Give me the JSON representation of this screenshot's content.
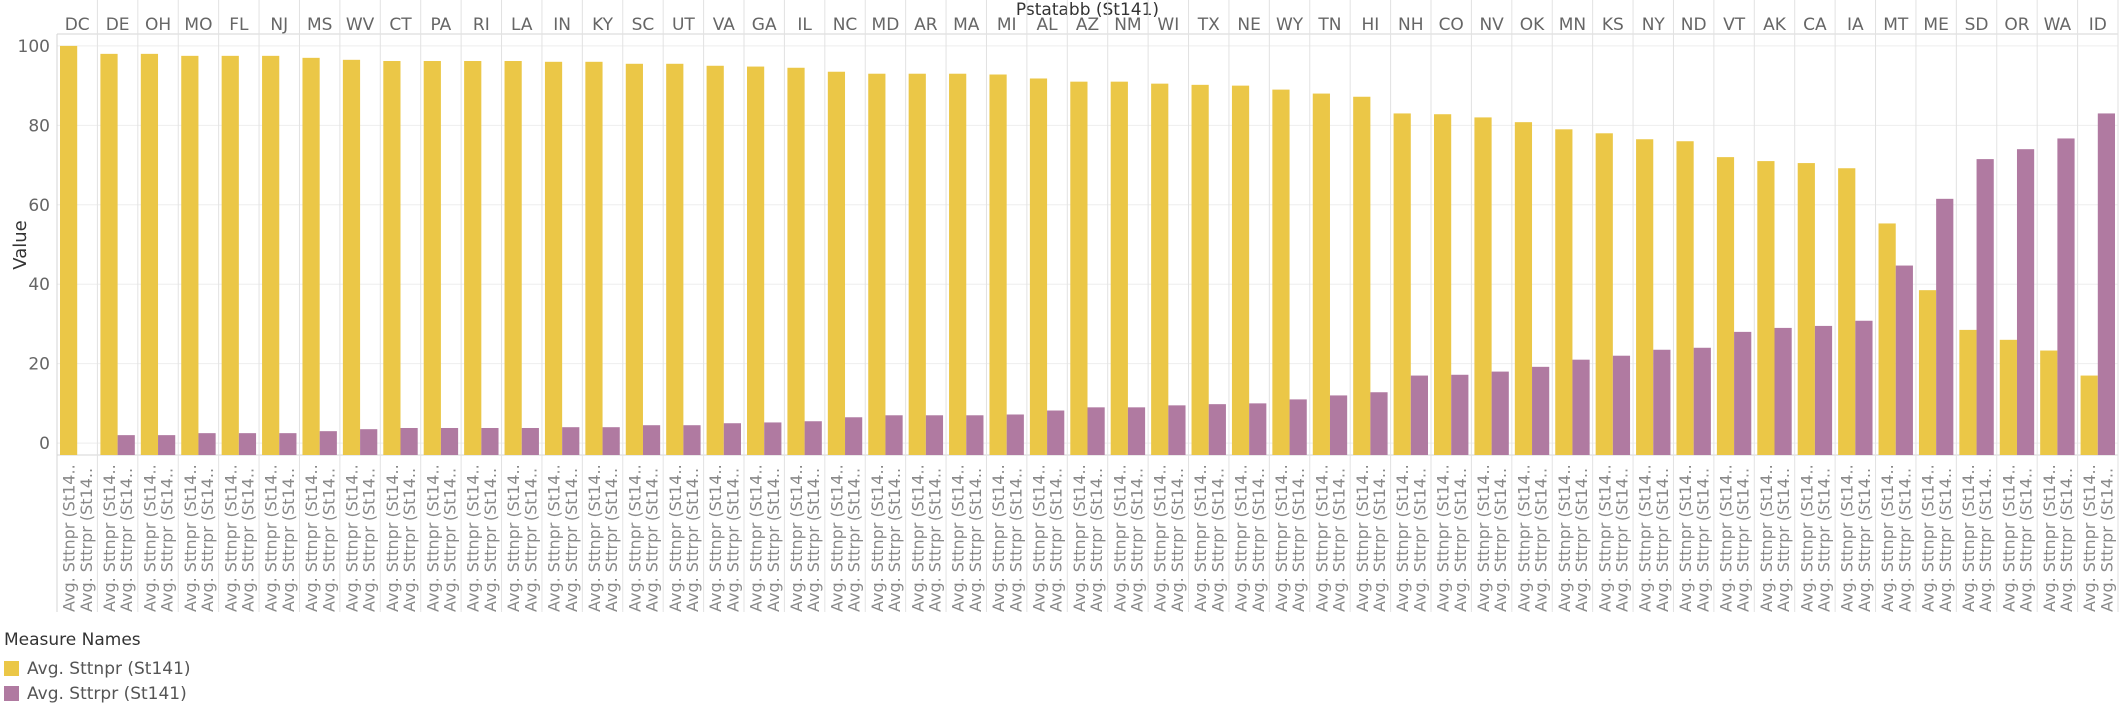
{
  "chart_data": {
    "type": "bar",
    "title": "Pstatabb (St141)",
    "ylabel": "Value",
    "ylim": [
      -3,
      103
    ],
    "yticks": [
      0,
      20,
      40,
      60,
      80,
      100
    ],
    "grid": true,
    "categories": [
      "DC",
      "DE",
      "OH",
      "MO",
      "FL",
      "NJ",
      "MS",
      "WV",
      "CT",
      "PA",
      "RI",
      "LA",
      "IN",
      "KY",
      "SC",
      "UT",
      "VA",
      "GA",
      "IL",
      "NC",
      "MD",
      "AR",
      "MA",
      "MI",
      "AL",
      "AZ",
      "NM",
      "WI",
      "TX",
      "NE",
      "WY",
      "TN",
      "HI",
      "NH",
      "CO",
      "NV",
      "OK",
      "MN",
      "KS",
      "NY",
      "ND",
      "VT",
      "AK",
      "CA",
      "IA",
      "MT",
      "ME",
      "SD",
      "OR",
      "WA",
      "ID"
    ],
    "series": [
      {
        "name": "Avg. Sttnpr (St141)",
        "color": "#EBC747",
        "values": [
          100,
          98,
          98,
          97.5,
          97.5,
          97.5,
          97,
          96.5,
          96.2,
          96.2,
          96.2,
          96.2,
          96,
          96,
          95.5,
          95.5,
          95,
          94.8,
          94.5,
          93.5,
          93,
          93,
          93,
          92.8,
          91.8,
          91,
          91,
          90.5,
          90.2,
          90,
          89,
          88,
          87.2,
          83,
          82.8,
          82,
          80.8,
          79,
          78,
          76.5,
          76,
          72,
          71,
          70.5,
          69.2,
          55.3,
          38.5,
          28.5,
          26,
          23.3,
          17
        ]
      },
      {
        "name": "Avg. Sttrpr (St141)",
        "color": "#B07AA1",
        "values": [
          0,
          2,
          2,
          2.5,
          2.5,
          2.5,
          3,
          3.5,
          3.8,
          3.8,
          3.8,
          3.8,
          4,
          4,
          4.5,
          4.5,
          5,
          5.2,
          5.5,
          6.5,
          7,
          7,
          7,
          7.2,
          8.2,
          9,
          9,
          9.5,
          9.8,
          10,
          11,
          12,
          12.8,
          17,
          17.2,
          18,
          19.2,
          21,
          22,
          23.5,
          24,
          28,
          29,
          29.5,
          30.8,
          44.7,
          61.5,
          71.5,
          74,
          76.7,
          83
        ]
      }
    ],
    "x_labels": [
      "Avg. Sttnpr (St14..",
      "Avg. Sttrpr (St14.."
    ],
    "legend": {
      "title": "Measure Names",
      "position": "bottom-left"
    }
  }
}
